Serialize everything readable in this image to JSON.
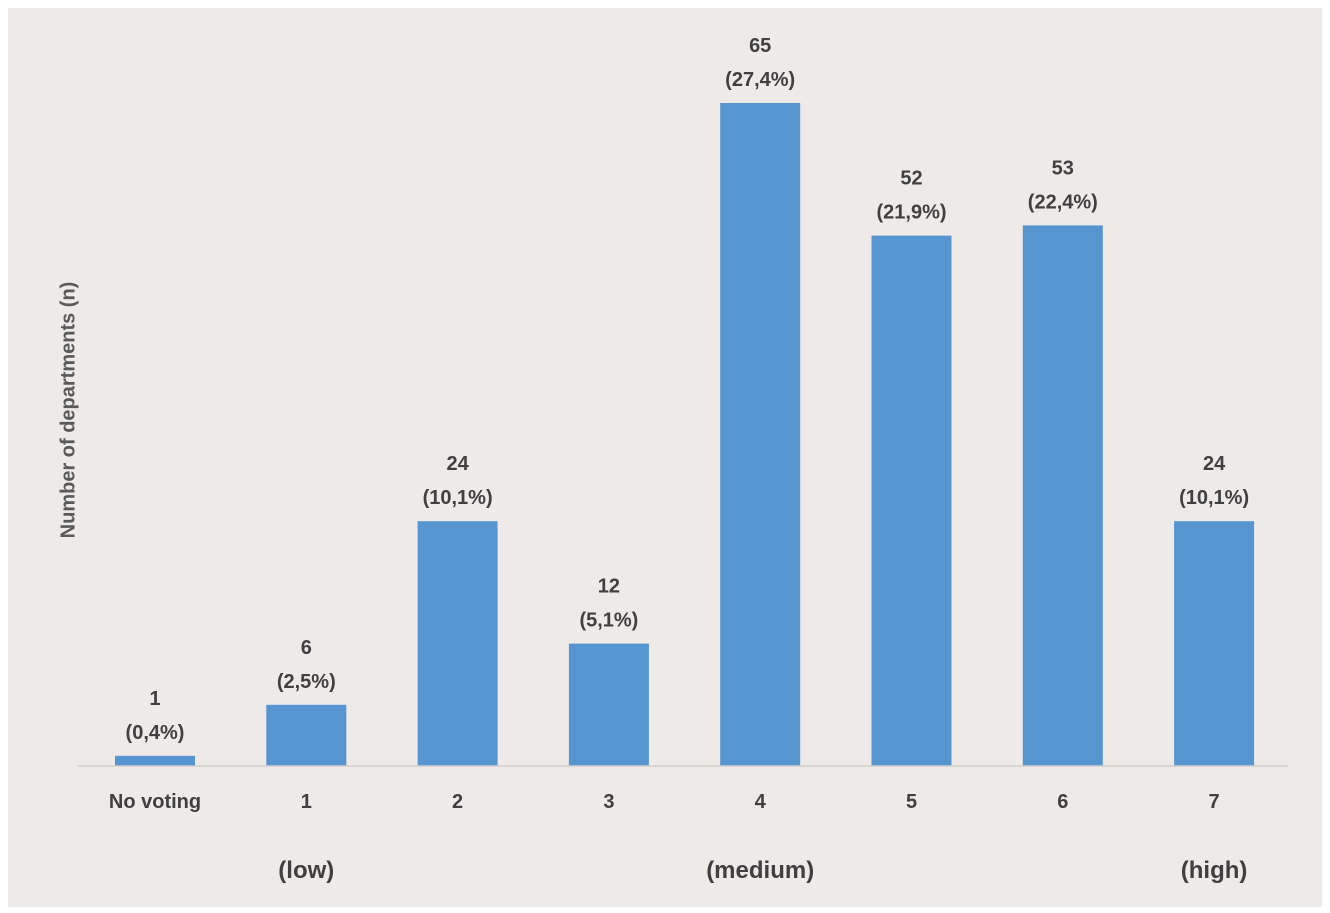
{
  "chart_data": {
    "type": "bar",
    "title": "",
    "xlabel": "",
    "ylabel": "Number of departments (n)",
    "ylim": [
      0,
      70
    ],
    "grid": false,
    "legend": false,
    "bar_color": "#5795d0",
    "background_color": "#edeae8",
    "categories": [
      "No voting",
      "1",
      "2",
      "3",
      "4",
      "5",
      "6",
      "7"
    ],
    "values": [
      1,
      6,
      24,
      12,
      65,
      52,
      53,
      24
    ],
    "value_labels": [
      "1",
      "6",
      "24",
      "12",
      "65",
      "52",
      "53",
      "24"
    ],
    "percent_labels": [
      "(0,4%)",
      "(2,5%)",
      "(10,1%)",
      "(5,1%)",
      "(27,4%)",
      "(21,9%)",
      "(22,4%)",
      "(10,1%)"
    ],
    "scale_annotations": [
      {
        "text": "(low)",
        "category": "1"
      },
      {
        "text": "(medium)",
        "category": "4"
      },
      {
        "text": "(high)",
        "category": "7"
      }
    ]
  }
}
